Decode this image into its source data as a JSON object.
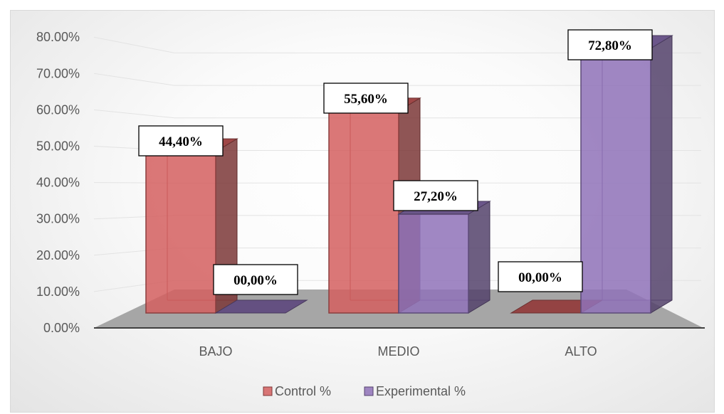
{
  "chart_data": {
    "type": "bar",
    "categories": [
      "BAJO",
      "MEDIO",
      "ALTO"
    ],
    "series": [
      {
        "name": "Control %",
        "values": [
          44.4,
          55.6,
          0.0
        ],
        "labels": [
          "44,40%",
          "55,60%",
          "00,00%"
        ],
        "color": "#d45f5f"
      },
      {
        "name": "Experimental %",
        "values": [
          0.0,
          27.2,
          72.8
        ],
        "labels": [
          "00,00%",
          "27,20%",
          "72,80%"
        ],
        "color": "#8f72b8"
      }
    ],
    "ylim": [
      0,
      80
    ],
    "yticks": [
      "0.00%",
      "10.00%",
      "20.00%",
      "30.00%",
      "40.00%",
      "50.00%",
      "60.00%",
      "70.00%",
      "80.00%"
    ],
    "grid": true,
    "legend": "bottom",
    "style": "3d-clustered-column"
  }
}
